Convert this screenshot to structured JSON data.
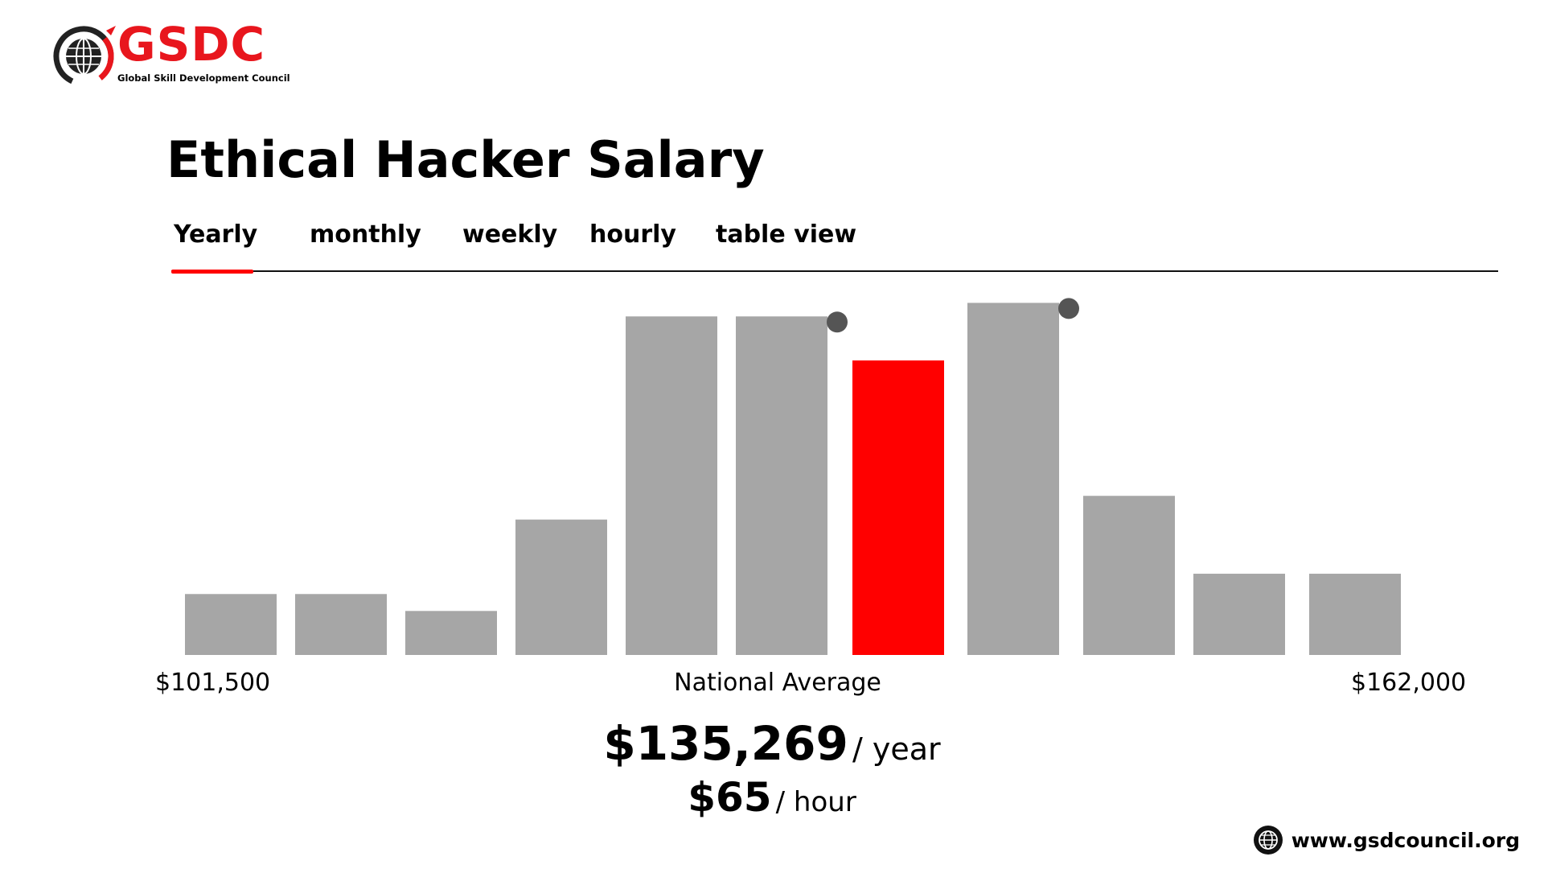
{
  "logo": {
    "wordmark": "GSDC",
    "subtitle": "Global Skill Development Council",
    "brand_color": "#e8161d"
  },
  "title": "Ethical Hacker Salary",
  "tabs": [
    {
      "label": "Yearly",
      "active": true
    },
    {
      "label": "monthly",
      "active": false
    },
    {
      "label": "weekly",
      "active": false
    },
    {
      "label": "hourly",
      "active": false
    },
    {
      "label": "table view",
      "active": false
    }
  ],
  "colors": {
    "bar": "#a6a6a6",
    "highlight": "#ff0000",
    "marker": "#555555",
    "accent": "#ff0000"
  },
  "chart_data": {
    "type": "bar",
    "values": [
      18,
      18,
      13,
      40,
      100,
      100,
      87,
      104,
      47,
      24,
      24
    ],
    "highlight_index": 6,
    "markers_on_bars": [
      5,
      7
    ],
    "ylim": [
      0,
      106
    ],
    "x_range_labels": {
      "min": "$101,500",
      "center": "National Average",
      "max": "$162,000"
    }
  },
  "summary": {
    "yearly_value": "$135,269",
    "yearly_unit": "/ year",
    "hourly_value": "$65",
    "hourly_unit": "/ hour"
  },
  "footer": {
    "website": "www.gsdcouncil.org",
    "icon": "globe-icon"
  }
}
